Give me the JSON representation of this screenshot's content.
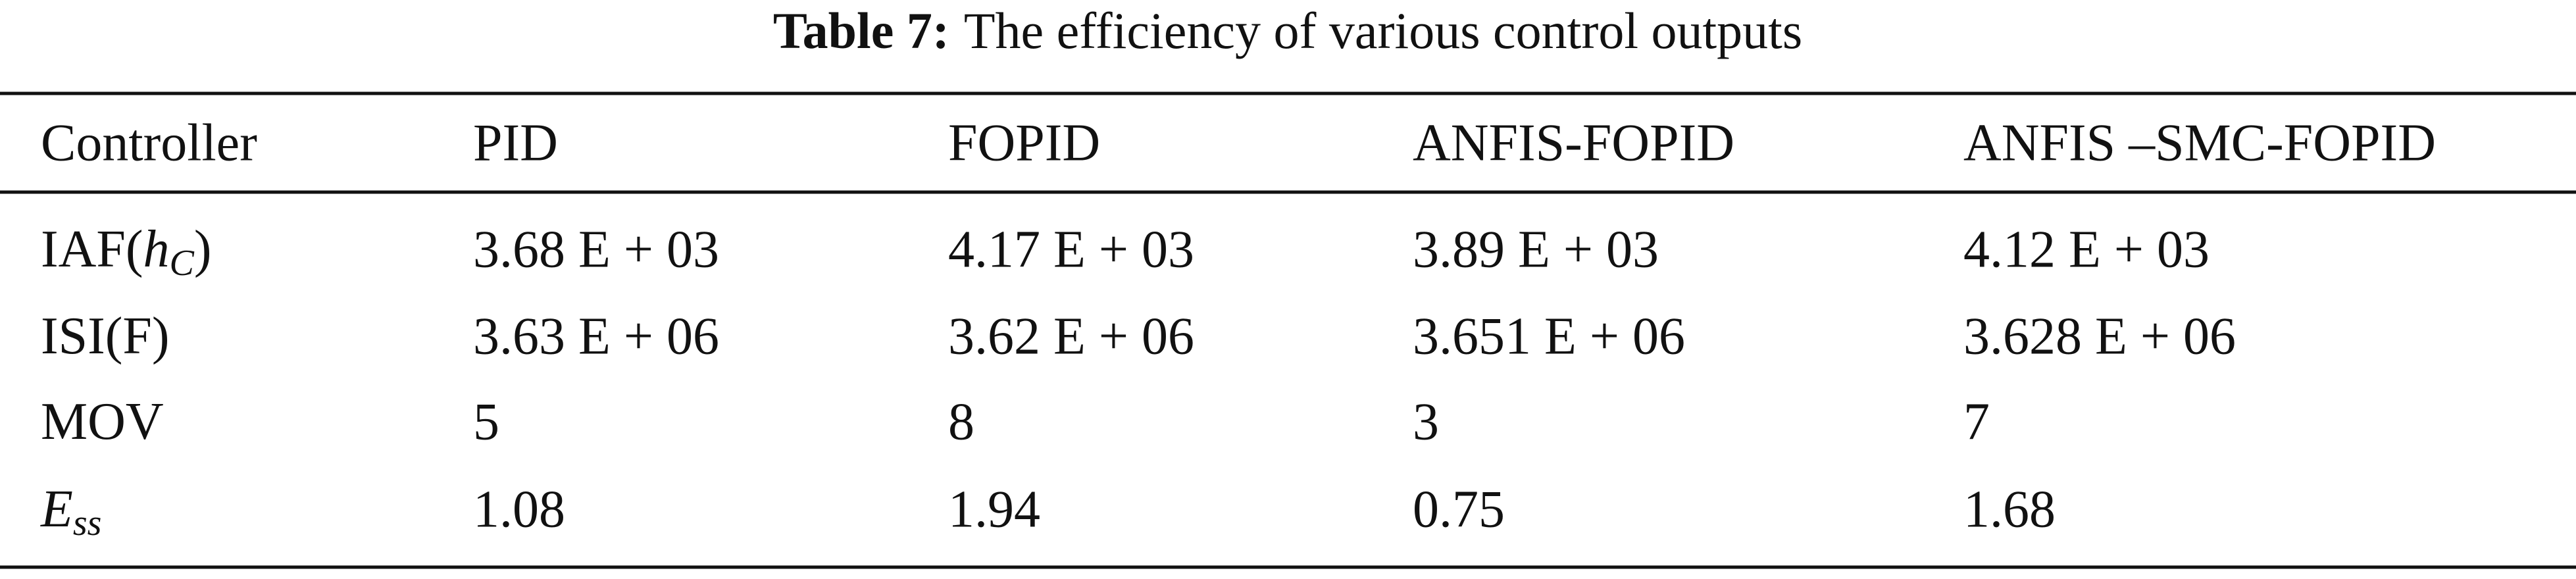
{
  "table": {
    "caption_label": "Table 7:",
    "caption_text": "The efficiency of various control outputs",
    "header": [
      "Controller",
      "PID",
      "FOPID",
      "ANFIS-FOPID",
      "ANFIS –SMC-FOPID"
    ],
    "rows": [
      {
        "label": [
          "IAF(",
          "h",
          "C",
          ")"
        ],
        "cells": [
          "3.68 E + 03",
          "4.17 E + 03",
          "3.89 E + 03",
          "4.12 E + 03"
        ]
      },
      {
        "label": [
          "ISI(F)"
        ],
        "cells": [
          "3.63 E + 06",
          "3.62 E + 06",
          "3.651 E + 06",
          "3.628 E + 06"
        ]
      },
      {
        "label": [
          "MOV"
        ],
        "cells": [
          "5",
          "8",
          "3",
          "7"
        ]
      },
      {
        "label": [
          "E",
          "ss"
        ],
        "cells": [
          "1.08",
          "1.94",
          "0.75",
          "1.68"
        ]
      }
    ]
  }
}
